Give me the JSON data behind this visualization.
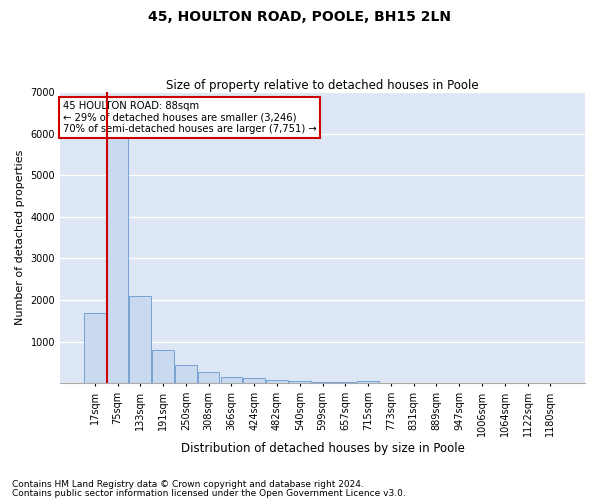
{
  "title": "45, HOULTON ROAD, POOLE, BH15 2LN",
  "subtitle": "Size of property relative to detached houses in Poole",
  "xlabel": "Distribution of detached houses by size in Poole",
  "ylabel": "Number of detached properties",
  "footnote1": "Contains HM Land Registry data © Crown copyright and database right 2024.",
  "footnote2": "Contains public sector information licensed under the Open Government Licence v3.0.",
  "annotation_title": "45 HOULTON ROAD: 88sqm",
  "annotation_line1": "← 29% of detached houses are smaller (3,246)",
  "annotation_line2": "70% of semi-detached houses are larger (7,751) →",
  "bar_labels": [
    "17sqm",
    "75sqm",
    "133sqm",
    "191sqm",
    "250sqm",
    "308sqm",
    "366sqm",
    "424sqm",
    "482sqm",
    "540sqm",
    "599sqm",
    "657sqm",
    "715sqm",
    "773sqm",
    "831sqm",
    "889sqm",
    "947sqm",
    "1006sqm",
    "1064sqm",
    "1122sqm",
    "1180sqm"
  ],
  "bar_values": [
    1700,
    6050,
    2100,
    800,
    430,
    260,
    160,
    120,
    80,
    55,
    35,
    20,
    55,
    5,
    3,
    2,
    1,
    1,
    0,
    0,
    0
  ],
  "bar_color": "#c9d9ef",
  "bar_edge_color": "#6699cc",
  "highlight_line_color": "#cc0000",
  "red_line_x": 0.525,
  "ylim": [
    0,
    7000
  ],
  "yticks": [
    0,
    1000,
    2000,
    3000,
    4000,
    5000,
    6000,
    7000
  ],
  "background_color": "#ffffff",
  "plot_bg_color": "#dce6f5",
  "grid_color": "#ffffff",
  "annotation_box_color": "#ffffff",
  "annotation_box_edge": "#cc0000",
  "title_fontsize": 10,
  "subtitle_fontsize": 8.5,
  "ylabel_fontsize": 8,
  "xlabel_fontsize": 8.5,
  "tick_fontsize": 7,
  "footnote_fontsize": 6.5
}
